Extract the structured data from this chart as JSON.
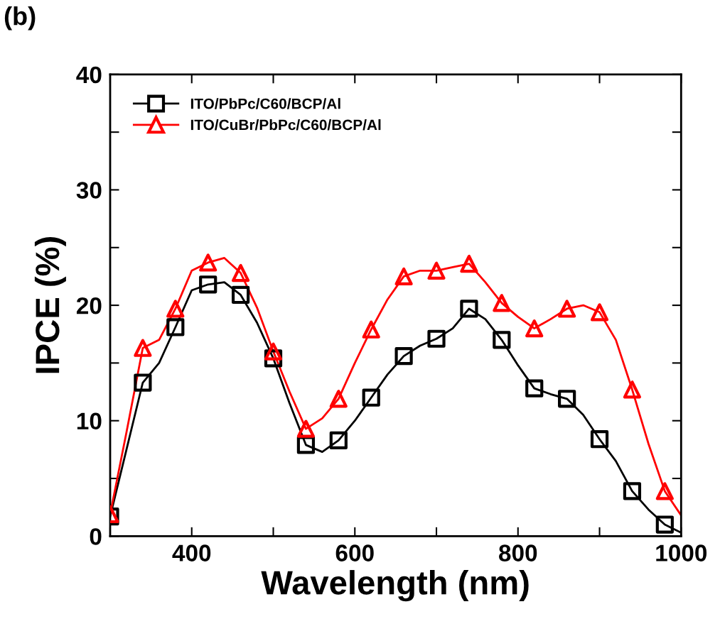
{
  "chart_data": {
    "type": "line",
    "xlabel": "Wavelength (nm)",
    "ylabel": "IPCE (%)",
    "annotations": [
      "(b)"
    ],
    "xlim": [
      300,
      1000
    ],
    "xticks": [
      {
        "value": 300,
        "label": null
      },
      400,
      {
        "value": 500,
        "label": null
      },
      600,
      {
        "value": 700,
        "label": null
      },
      800,
      {
        "value": 900,
        "label": null
      },
      1000
    ],
    "ylim": [
      0,
      40
    ],
    "yticks": [
      0,
      {
        "value": 5,
        "label": null
      },
      10,
      {
        "value": 15,
        "label": null
      },
      20,
      {
        "value": 25,
        "label": null
      },
      30,
      {
        "value": 35,
        "label": null
      },
      40
    ],
    "grid": false,
    "legend": "top left",
    "line_style": "solid",
    "series": [
      {
        "marker": "none",
        "color": "#000000",
        "x": [
          300,
          320,
          340,
          360,
          380,
          400,
          420,
          440,
          460,
          480,
          500,
          520,
          540,
          560,
          580,
          600,
          620,
          640,
          660,
          680,
          700,
          720,
          740,
          760,
          780,
          800,
          820,
          840,
          860,
          880,
          900,
          920,
          940,
          960,
          980,
          1000
        ],
        "values": [
          1.7,
          7.5,
          13.3,
          15,
          18.1,
          21.3,
          21.8,
          22,
          20.9,
          18.5,
          15.4,
          11.5,
          7.9,
          7.3,
          8.3,
          10,
          12.0,
          14,
          15.6,
          16.5,
          17.1,
          18,
          19.7,
          18.8,
          17.0,
          14.8,
          12.8,
          12.3,
          11.9,
          10.5,
          8.4,
          6.5,
          3.9,
          2.3,
          1.0,
          0.3
        ]
      },
      {
        "marker": "none",
        "color": "#ff0000",
        "x": [
          300,
          320,
          340,
          360,
          380,
          400,
          420,
          440,
          460,
          480,
          500,
          520,
          540,
          560,
          580,
          600,
          620,
          640,
          660,
          680,
          700,
          720,
          740,
          760,
          780,
          800,
          820,
          840,
          860,
          880,
          900,
          920,
          940,
          960,
          980,
          1000
        ],
        "values": [
          1.9,
          9,
          16.3,
          17,
          19.7,
          23,
          23.7,
          24.1,
          22.8,
          19.8,
          16.0,
          12.5,
          9.3,
          10.2,
          11.9,
          15,
          17.9,
          20.5,
          22.5,
          23,
          23.0,
          23.3,
          23.6,
          22,
          20.2,
          19,
          18.0,
          18.8,
          19.7,
          20,
          19.4,
          17,
          12.7,
          8,
          3.9,
          1.8
        ]
      },
      {
        "type": "scatter",
        "name": "ITO/PbPc/C60/BCP/Al",
        "marker": "square",
        "color": "#000000",
        "x": [
          300,
          340,
          380,
          420,
          460,
          500,
          540,
          580,
          620,
          660,
          700,
          740,
          780,
          820,
          860,
          900,
          940,
          980
        ],
        "values": [
          1.7,
          13.3,
          18.1,
          21.8,
          20.9,
          15.4,
          7.9,
          8.3,
          12.0,
          15.6,
          17.1,
          19.7,
          17.0,
          12.8,
          11.9,
          8.4,
          3.9,
          1.0
        ]
      },
      {
        "type": "scatter",
        "name": "ITO/CuBr/PbPc/C60/BCP/Al",
        "marker": "triangle",
        "color": "#ff0000",
        "x": [
          300,
          340,
          380,
          420,
          460,
          500,
          540,
          580,
          620,
          660,
          700,
          740,
          780,
          820,
          860,
          900,
          940,
          980
        ],
        "values": [
          1.9,
          16.3,
          19.7,
          23.7,
          22.8,
          16.0,
          9.3,
          11.9,
          17.9,
          22.5,
          23.0,
          23.6,
          20.2,
          18.0,
          19.7,
          19.4,
          12.7,
          3.9
        ]
      }
    ]
  }
}
